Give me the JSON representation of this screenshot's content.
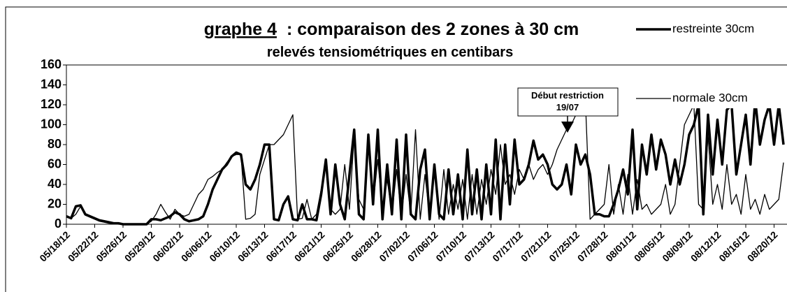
{
  "chart_data": {
    "type": "line",
    "title": {
      "underlined": "graphe 4",
      "text": ": comparaison des 2 zones à 30 cm"
    },
    "subtitle": "relevés tensiométriques en centibars",
    "annotation": [
      "Début restriction",
      "19/07"
    ],
    "legend": "top-right",
    "grid": false,
    "ylim": [
      0,
      160
    ],
    "yticks": [
      0,
      20,
      40,
      60,
      80,
      100,
      120,
      140,
      160
    ],
    "categories": [
      "05/18/12",
      null,
      null,
      null,
      null,
      null,
      "05/22/12",
      null,
      null,
      null,
      null,
      null,
      "05/26/12",
      null,
      null,
      null,
      null,
      null,
      "05/29/12",
      null,
      null,
      null,
      null,
      null,
      "06/02/12",
      null,
      null,
      null,
      null,
      null,
      "06/06/12",
      null,
      null,
      null,
      null,
      null,
      "06/10/12",
      null,
      null,
      null,
      null,
      null,
      "06/13/12",
      null,
      null,
      null,
      null,
      null,
      "06/17/12",
      null,
      null,
      null,
      null,
      null,
      "06/21/12",
      null,
      null,
      null,
      null,
      null,
      "06/25/12",
      null,
      null,
      null,
      null,
      null,
      "06/28/12",
      null,
      null,
      null,
      null,
      null,
      "07/02/12",
      null,
      null,
      null,
      null,
      null,
      "07/06/12",
      null,
      null,
      null,
      null,
      null,
      "07/10/12",
      null,
      null,
      null,
      null,
      null,
      "07/13/12",
      null,
      null,
      null,
      null,
      null,
      "07/17/12",
      null,
      null,
      null,
      null,
      null,
      "07/21/12",
      null,
      null,
      null,
      null,
      null,
      "07/25/12",
      null,
      null,
      null,
      null,
      null,
      "07/28/12",
      null,
      null,
      null,
      null,
      null,
      "08/01/12",
      null,
      null,
      null,
      null,
      null,
      "08/05/12",
      null,
      null,
      null,
      null,
      null,
      "08/09/12",
      null,
      null,
      null,
      null,
      null,
      "08/12/12",
      null,
      null,
      null,
      null,
      null,
      "08/16/12",
      null,
      null,
      null,
      null,
      null,
      "08/20/12",
      null,
      null
    ],
    "series": [
      {
        "name": "restreinte 30cm",
        "color": "#000000",
        "width": 3.5,
        "values": [
          8,
          6,
          18,
          19,
          10,
          8,
          6,
          4,
          3,
          2,
          1,
          1,
          0,
          0,
          0,
          0,
          0,
          0,
          5,
          5,
          4,
          6,
          8,
          12,
          10,
          5,
          3,
          4,
          5,
          8,
          20,
          35,
          45,
          55,
          60,
          68,
          72,
          70,
          40,
          35,
          45,
          60,
          80,
          80,
          5,
          4,
          20,
          28,
          5,
          4,
          20,
          5,
          5,
          4,
          30,
          65,
          10,
          60,
          20,
          5,
          50,
          95,
          10,
          5,
          90,
          20,
          95,
          5,
          60,
          10,
          85,
          5,
          90,
          10,
          5,
          55,
          75,
          5,
          60,
          10,
          5,
          55,
          10,
          50,
          5,
          75,
          10,
          55,
          5,
          60,
          10,
          85,
          5,
          80,
          20,
          85,
          40,
          45,
          60,
          84,
          65,
          70,
          60,
          40,
          35,
          40,
          60,
          30,
          80,
          60,
          70,
          50,
          10,
          10,
          8,
          8,
          20,
          35,
          55,
          30,
          95,
          15,
          80,
          50,
          90,
          55,
          85,
          70,
          40,
          65,
          40,
          60,
          90,
          100,
          120,
          10,
          110,
          50,
          105,
          60,
          115,
          120,
          50,
          80,
          110,
          60,
          125,
          80,
          105,
          120,
          80,
          120,
          80
        ]
      },
      {
        "name": "normale 30cm",
        "color": "#000000",
        "width": 1.3,
        "values": [
          8,
          6,
          10,
          18,
          9,
          7,
          5,
          3,
          2,
          1,
          1,
          0,
          0,
          0,
          0,
          0,
          0,
          0,
          3,
          10,
          20,
          12,
          5,
          15,
          10,
          8,
          10,
          20,
          30,
          35,
          45,
          48,
          52,
          55,
          62,
          68,
          70,
          70,
          5,
          6,
          10,
          50,
          65,
          80,
          80,
          85,
          90,
          100,
          110,
          5,
          6,
          25,
          5,
          10,
          35,
          65,
          15,
          10,
          15,
          60,
          15,
          90,
          25,
          15,
          80,
          20,
          65,
          15,
          45,
          10,
          55,
          8,
          50,
          10,
          95,
          5,
          50,
          8,
          55,
          5,
          55,
          10,
          40,
          15,
          45,
          5,
          50,
          10,
          45,
          20,
          55,
          30,
          80,
          40,
          50,
          30,
          55,
          45,
          60,
          45,
          55,
          60,
          50,
          60,
          75,
          85,
          95,
          100,
          110,
          120,
          125,
          5,
          10,
          15,
          20,
          60,
          10,
          40,
          10,
          50,
          10,
          45,
          15,
          20,
          10,
          15,
          20,
          40,
          10,
          20,
          60,
          100,
          110,
          120,
          20,
          15,
          90,
          20,
          40,
          15,
          60,
          20,
          30,
          10,
          50,
          15,
          25,
          10,
          30,
          15,
          20,
          25,
          62
        ]
      }
    ]
  }
}
